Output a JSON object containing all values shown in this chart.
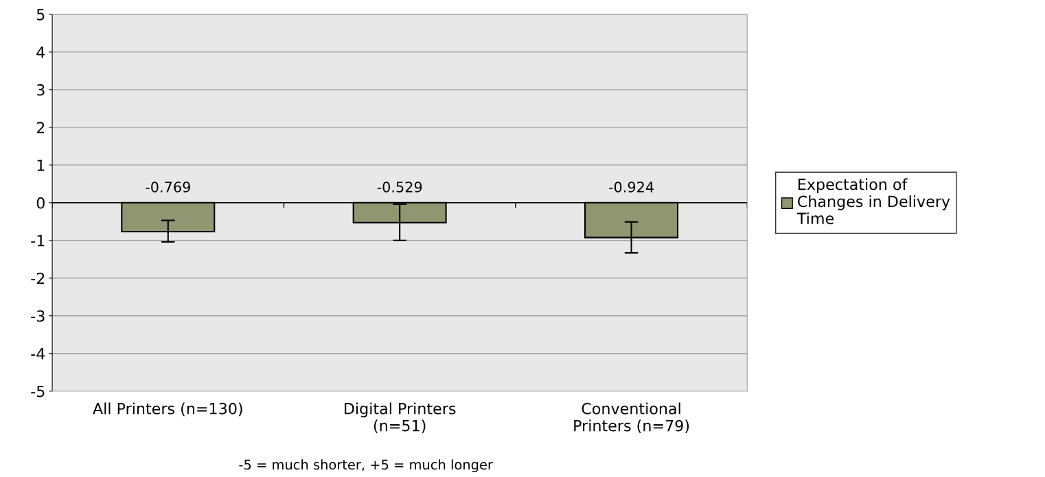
{
  "chart_data": {
    "type": "bar",
    "categories": [
      "All Printers (n=130)",
      "Digital Printers\n(n=51)",
      "Conventional\nPrinters (n=79)"
    ],
    "series": [
      {
        "name": "Expectation of\nChanges in Delivery\nTime",
        "color": "#8f9670",
        "values": [
          -0.769,
          -0.529,
          -0.924
        ],
        "errors": [
          [
            -1.04,
            -0.47
          ],
          [
            -1.0,
            -0.04
          ],
          [
            -1.33,
            -0.51
          ]
        ]
      }
    ],
    "data_labels": true,
    "ylim": [
      -5,
      5
    ],
    "yticks": [
      -5,
      -4,
      -3,
      -2,
      -1,
      0,
      1,
      2,
      3,
      4,
      5
    ],
    "grid": "y",
    "legend": "right",
    "annotations": [
      "-5 = much shorter, +5 = much longer"
    ]
  }
}
